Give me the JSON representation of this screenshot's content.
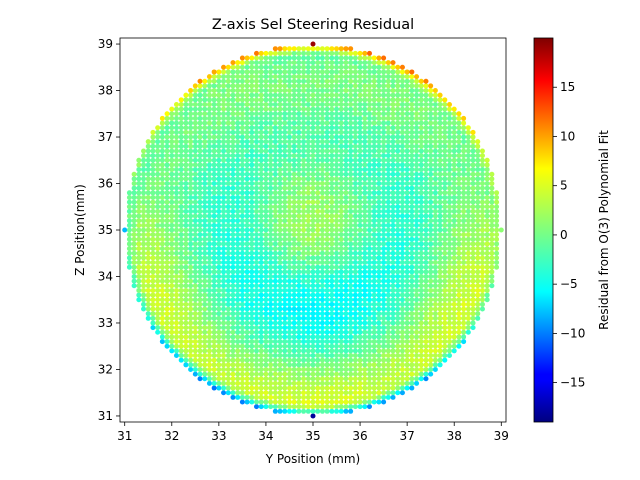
{
  "chart_data": {
    "type": "scatter",
    "title": "Z-axis Sel Steering Residual",
    "xlabel": "Y Position (mm)",
    "ylabel": "Z Position(mm)",
    "colorbar_label": "Residual from O(3) Polynomial Fit",
    "colormap": "jet",
    "xlim": [
      30.9,
      39.1
    ],
    "ylim": [
      30.87,
      39.13
    ],
    "clim": [
      -19,
      20
    ],
    "x_ticks": [
      "31",
      "32",
      "33",
      "34",
      "35",
      "36",
      "37",
      "38",
      "39"
    ],
    "y_ticks": [
      "31",
      "32",
      "33",
      "34",
      "35",
      "36",
      "37",
      "38",
      "39"
    ],
    "colorbar_ticks": [
      "-15",
      "-10",
      "-5",
      "0",
      "5",
      "10",
      "15"
    ],
    "grid": false,
    "points": {
      "center": [
        35.0,
        35.0
      ],
      "radius": 4.0,
      "step": 0.1,
      "description_values": "residual value per grid point within radius; edge ring values up to +19 at top (Z≈39) and -18 at bottom (Z≈31); interior mostly between -5 and +5"
    },
    "notable_values": [
      {
        "y": 35.0,
        "z": 39.0,
        "residual": 19
      },
      {
        "y": 35.0,
        "z": 31.0,
        "residual": -18
      },
      {
        "y": 31.0,
        "z": 35.0,
        "residual": -7
      },
      {
        "y": 39.0,
        "z": 35.0,
        "residual": 1
      }
    ]
  }
}
